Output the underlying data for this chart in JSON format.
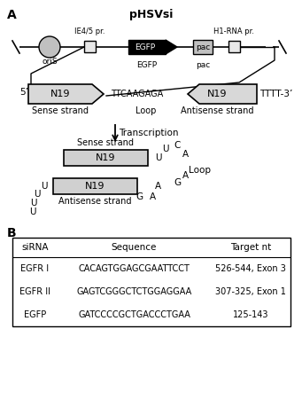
{
  "title_A": "pHSVsi",
  "label_A": "A",
  "label_B": "B",
  "ie45_label": "IE4/5 pr.",
  "h1rna_label": "H1-RNA pr.",
  "oris_label": "oriS",
  "egfp_label": "EGFP",
  "pac_label": "pac",
  "five_prime": "5’-",
  "three_prime": "TTTT-3’",
  "loop_seq": "TTCAAGAGA",
  "n19_label": "N19",
  "sense_strand": "Sense strand",
  "antisense_strand": "Antisense strand",
  "loop_label": "Loop",
  "transcription_label": "Transcription",
  "table_headers": [
    "siRNA",
    "Sequence",
    "Target nt"
  ],
  "table_rows": [
    [
      "EGFR I",
      "CACAGTGGAGCGAATTCCT",
      "526-544, Exon 3"
    ],
    [
      "EGFR II",
      "GAGTCGGGCTCTGGAGGAA",
      "307-325, Exon 1"
    ],
    [
      "EGFP",
      "GATCCCCGCTGACCCTGAA",
      "125-143"
    ]
  ],
  "bg_color": "#ffffff"
}
